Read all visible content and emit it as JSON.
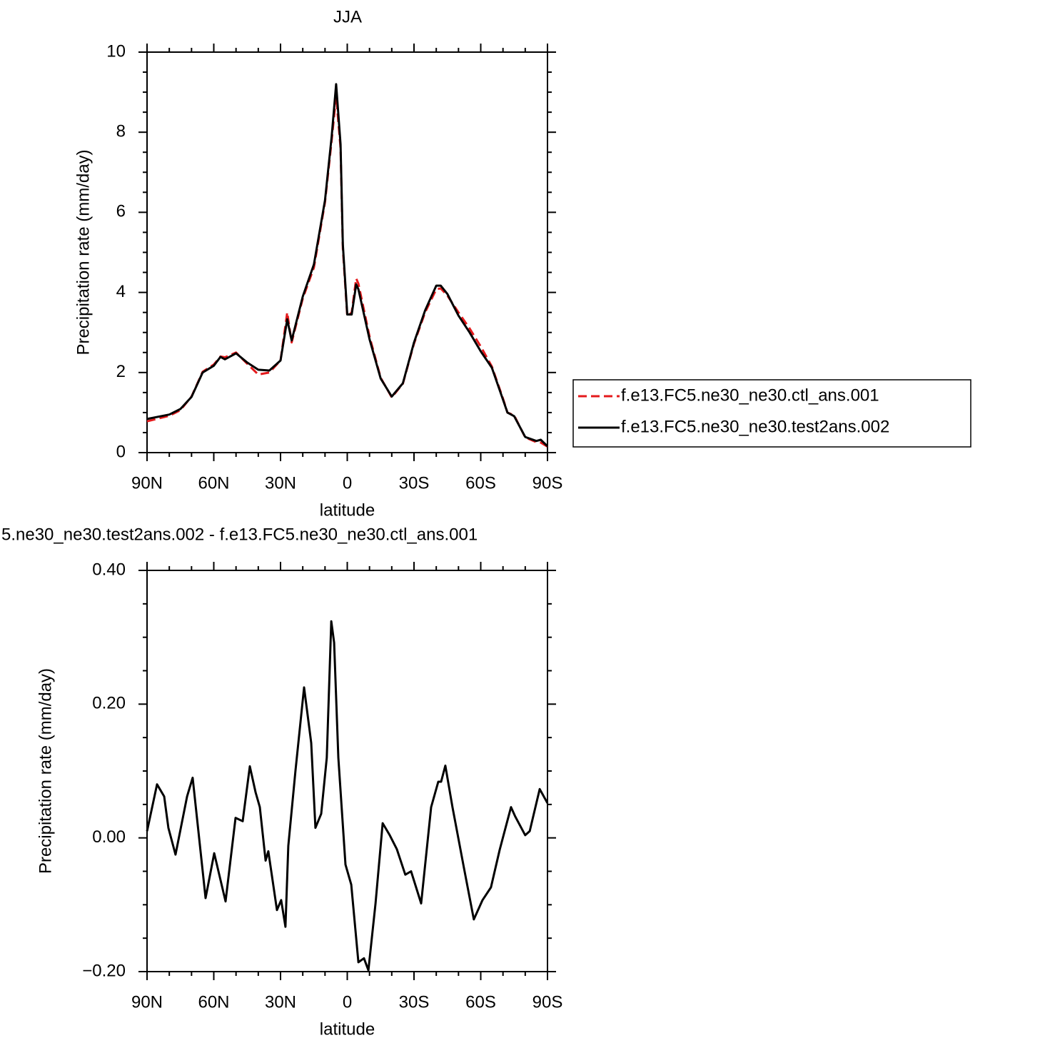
{
  "chart_data": [
    {
      "type": "line",
      "title": "JJA",
      "xlabel": "latitude",
      "ylabel": "Precipitation rate (mm/day)",
      "x": [
        90,
        80,
        75,
        70,
        65,
        60,
        57,
        55,
        50,
        45,
        40,
        35,
        30,
        27,
        25,
        20,
        15,
        10,
        7,
        5,
        3,
        2,
        0,
        -2,
        -4,
        -5,
        -10,
        -15,
        -20,
        -25,
        -30,
        -35,
        -40,
        -42,
        -45,
        -50,
        -55,
        -60,
        -65,
        -70,
        -72,
        -75,
        -80,
        -85,
        -87,
        -90
      ],
      "series": [
        {
          "name": "f.e13.FC5.ne30_ne30.ctl_ans.001",
          "color": "#e41a1c",
          "line_style": "dashed",
          "values": [
            0.78,
            0.92,
            1.06,
            1.4,
            2.02,
            2.2,
            2.4,
            2.38,
            2.5,
            2.22,
            1.95,
            2.0,
            2.3,
            3.5,
            2.75,
            3.85,
            4.62,
            6.25,
            7.8,
            8.9,
            7.6,
            5.1,
            3.4,
            3.5,
            4.35,
            4.22,
            2.9,
            1.87,
            1.38,
            1.72,
            2.72,
            3.5,
            4.08,
            4.1,
            3.92,
            3.5,
            3.1,
            2.65,
            2.15,
            1.35,
            1.0,
            0.93,
            0.38,
            0.26,
            0.25,
            0.15
          ]
        },
        {
          "name": "f.e13.FC5.ne30_ne30.test2ans.002",
          "color": "#000000",
          "line_style": "solid",
          "values": [
            0.84,
            0.95,
            1.09,
            1.39,
            2.0,
            2.17,
            2.39,
            2.33,
            2.48,
            2.25,
            2.07,
            2.05,
            2.3,
            3.33,
            2.8,
            3.9,
            4.7,
            6.3,
            7.9,
            9.2,
            7.7,
            5.2,
            3.45,
            3.45,
            4.2,
            4.08,
            2.83,
            1.85,
            1.4,
            1.73,
            2.75,
            3.55,
            4.17,
            4.17,
            3.96,
            3.42,
            3.0,
            2.53,
            2.12,
            1.32,
            1.0,
            0.91,
            0.39,
            0.29,
            0.32,
            0.16
          ]
        }
      ],
      "xlim": [
        90,
        -90
      ],
      "xticks": [
        {
          "value": 90,
          "label": "90N"
        },
        {
          "value": 60,
          "label": "60N"
        },
        {
          "value": 30,
          "label": "30N"
        },
        0,
        {
          "value": -30,
          "label": "30S"
        },
        {
          "value": -60,
          "label": "60S"
        },
        {
          "value": -90,
          "label": "90S"
        }
      ],
      "ylim": [
        0,
        10
      ],
      "yticks": [
        0,
        2,
        4,
        6,
        8,
        10
      ],
      "legend": "right"
    },
    {
      "type": "line",
      "title": "5.ne30_ne30.test2ans.002 - f.e13.FC5.ne30_ne30.ctl_ans.001",
      "xlabel": "latitude",
      "ylabel": "Precipitation rate (mm/day)",
      "x": [
        90,
        85.5,
        82.3,
        80.4,
        77.2,
        72,
        69.5,
        63.7,
        59.8,
        54.7,
        50.2,
        47,
        43.8,
        41.2,
        39.3,
        36.7,
        35.5,
        31.6,
        29.7,
        27.8,
        26.5,
        23.3,
        19.4,
        16.2,
        14.3,
        11.7,
        9.2,
        7.2,
        5.9,
        4,
        0.8,
        -1.8,
        -5,
        -7.5,
        -9.5,
        -12.7,
        -15.9,
        -19.1,
        -22.3,
        -26.1,
        -28.7,
        -33.2,
        -37.7,
        -40.9,
        -42.2,
        -44.1,
        -47.3,
        -52.4,
        -56.9,
        -60.8,
        -64.6,
        -68.5,
        -73.6,
        -75.5,
        -80,
        -82,
        -86.5,
        -90
      ],
      "color": "#000000",
      "values": [
        0.01,
        0.08,
        0.062,
        0.015,
        -0.025,
        0.062,
        0.09,
        -0.09,
        -0.023,
        -0.095,
        0.03,
        0.025,
        0.107,
        0.068,
        0.046,
        -0.034,
        -0.02,
        -0.108,
        -0.093,
        -0.133,
        -0.012,
        0.1,
        0.225,
        0.142,
        0.015,
        0.036,
        0.12,
        0.324,
        0.292,
        0.12,
        -0.04,
        -0.07,
        -0.186,
        -0.18,
        -0.198,
        -0.098,
        0.022,
        0.004,
        -0.017,
        -0.055,
        -0.05,
        -0.098,
        0.046,
        0.084,
        0.084,
        0.108,
        0.046,
        -0.044,
        -0.122,
        -0.093,
        -0.074,
        -0.018,
        0.046,
        0.032,
        0.004,
        0.01,
        0.073,
        0.052
      ],
      "xlim": [
        90,
        -90
      ],
      "xticks": [
        {
          "value": 90,
          "label": "90N"
        },
        {
          "value": 60,
          "label": "60N"
        },
        {
          "value": 30,
          "label": "30N"
        },
        0,
        {
          "value": -30,
          "label": "30S"
        },
        {
          "value": -60,
          "label": "60S"
        },
        {
          "value": -90,
          "label": "90S"
        }
      ],
      "ylim": [
        -0.2,
        0.4
      ],
      "yticks": [
        {
          "value": -0.2,
          "label": "−0.20"
        },
        {
          "value": 0,
          "label": "0.00"
        },
        {
          "value": 0.2,
          "label": "0.20"
        },
        {
          "value": 0.4,
          "label": "0.40"
        }
      ]
    }
  ]
}
